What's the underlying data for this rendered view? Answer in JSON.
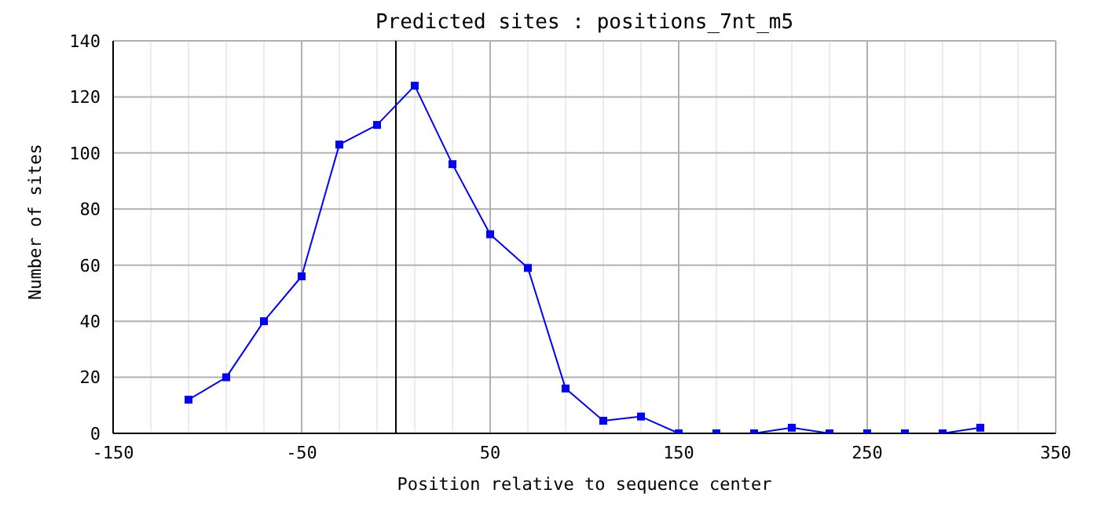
{
  "chart_data": {
    "type": "line",
    "title": "Predicted sites : positions_7nt_m5",
    "xlabel": "Position relative to sequence center",
    "ylabel": "Number of sites",
    "x": [
      -110,
      -90,
      -70,
      -50,
      -30,
      -10,
      10,
      30,
      50,
      70,
      90,
      110,
      130,
      150,
      170,
      190,
      210,
      230,
      250,
      270,
      290,
      310
    ],
    "series": [
      {
        "color": "#0000ff",
        "values": [
          12,
          20,
          40,
          56,
          103,
          110,
          124,
          96,
          71,
          59,
          16,
          4.5,
          6,
          0,
          0,
          0,
          2,
          0,
          0,
          0,
          0,
          2
        ]
      }
    ],
    "xlim": [
      -150,
      350
    ],
    "xticks": [
      -150,
      {
        "value": -130,
        "label": null
      },
      {
        "value": -110,
        "label": null
      },
      {
        "value": -90,
        "label": null
      },
      {
        "value": -70,
        "label": null
      },
      -50,
      {
        "value": -30,
        "label": null
      },
      {
        "value": -10,
        "label": null
      },
      {
        "value": 10,
        "label": null
      },
      {
        "value": 30,
        "label": null
      },
      50,
      {
        "value": 70,
        "label": null
      },
      {
        "value": 90,
        "label": null
      },
      {
        "value": 110,
        "label": null
      },
      {
        "value": 130,
        "label": null
      },
      150,
      {
        "value": 170,
        "label": null
      },
      {
        "value": 190,
        "label": null
      },
      {
        "value": 210,
        "label": null
      },
      {
        "value": 230,
        "label": null
      },
      250,
      {
        "value": 270,
        "label": null
      },
      {
        "value": 290,
        "label": null
      },
      {
        "value": 310,
        "label": null
      },
      {
        "value": 330,
        "label": null
      },
      350
    ],
    "ylim": [
      0,
      140
    ],
    "yticks": [
      0,
      20,
      40,
      60,
      80,
      100,
      120,
      140
    ],
    "grid": true,
    "marker": "square",
    "line_style": "solid",
    "ref_lines": [
      {
        "axis": "x",
        "value": 0,
        "color": "#000000"
      }
    ]
  }
}
